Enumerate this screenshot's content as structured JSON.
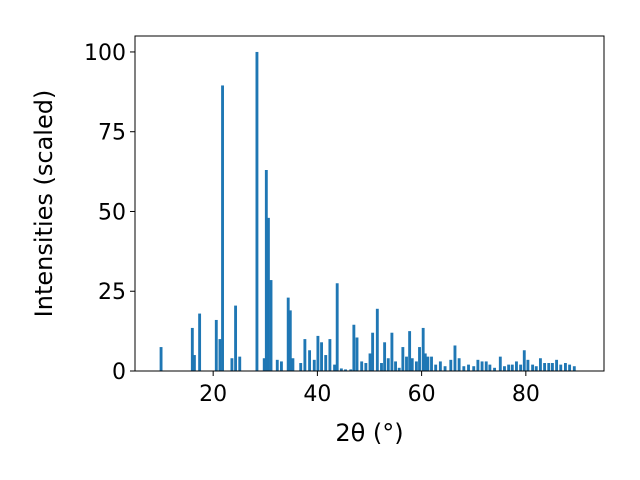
{
  "chart_data": {
    "type": "bar",
    "title": "",
    "xlabel": "2θ (°)",
    "ylabel": "Intensities (scaled)",
    "xlim": [
      5,
      95
    ],
    "ylim": [
      0,
      105
    ],
    "xticks": [
      20,
      40,
      60,
      80
    ],
    "yticks": [
      0,
      25,
      50,
      75,
      100
    ],
    "grid": false,
    "legend": "none",
    "bar_width": 0.55,
    "color": "#1f77b4",
    "x": [
      10.0,
      16.0,
      16.4,
      17.4,
      20.6,
      21.3,
      21.8,
      23.6,
      24.3,
      25.1,
      28.4,
      29.8,
      30.2,
      30.6,
      31.1,
      32.3,
      33.1,
      34.4,
      34.8,
      35.3,
      36.8,
      37.6,
      38.5,
      39.4,
      40.1,
      40.8,
      41.6,
      42.4,
      43.3,
      43.8,
      44.6,
      45.4,
      46.4,
      47.0,
      47.6,
      48.5,
      49.3,
      50.1,
      50.6,
      51.5,
      52.3,
      52.9,
      53.6,
      54.3,
      55.0,
      55.7,
      56.4,
      57.1,
      57.7,
      58.2,
      59.0,
      59.6,
      60.3,
      60.7,
      61.2,
      61.9,
      62.7,
      63.6,
      64.5,
      65.6,
      66.4,
      67.2,
      68.1,
      69.0,
      70.0,
      70.8,
      71.6,
      72.4,
      73.1,
      74.0,
      75.1,
      75.9,
      76.7,
      77.4,
      78.2,
      79.0,
      79.7,
      80.4,
      81.3,
      82.0,
      82.8,
      83.6,
      84.4,
      85.1,
      85.9,
      86.7,
      87.6,
      88.4,
      89.3
    ],
    "values": [
      7.5,
      13.5,
      5.0,
      18.0,
      16.0,
      10.0,
      89.5,
      4.0,
      20.5,
      4.5,
      100.0,
      4.0,
      63.0,
      48.0,
      28.5,
      3.5,
      3.0,
      23.0,
      19.0,
      4.0,
      2.5,
      10.0,
      6.5,
      3.5,
      11.0,
      9.0,
      5.0,
      10.0,
      2.0,
      27.5,
      0.8,
      0.5,
      0.5,
      14.5,
      10.5,
      3.0,
      2.5,
      5.5,
      12.0,
      19.5,
      2.5,
      9.0,
      4.0,
      12.0,
      3.0,
      1.0,
      7.5,
      4.5,
      12.5,
      4.0,
      3.0,
      7.5,
      13.5,
      5.5,
      4.5,
      4.5,
      2.0,
      3.0,
      1.5,
      3.5,
      8.0,
      4.0,
      1.5,
      2.0,
      1.5,
      3.5,
      3.0,
      3.0,
      2.0,
      1.0,
      4.5,
      1.5,
      2.0,
      2.0,
      3.0,
      2.0,
      6.5,
      3.5,
      2.0,
      1.5,
      4.0,
      2.5,
      2.5,
      2.5,
      3.5,
      2.0,
      2.5,
      2.0,
      1.5
    ]
  }
}
